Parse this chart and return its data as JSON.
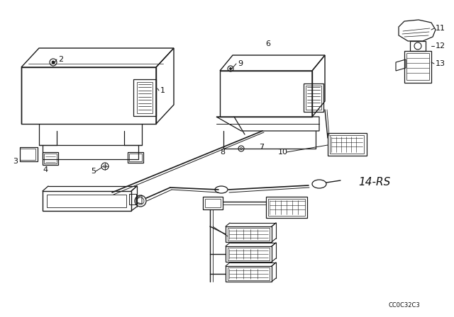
{
  "bg_color": "#ffffff",
  "line_color": "#1a1a1a",
  "label_color": "#111111",
  "fig_width": 6.4,
  "fig_height": 4.48,
  "dpi": 100,
  "watermark": "CC0C32C3",
  "ref_code": "14-RS"
}
